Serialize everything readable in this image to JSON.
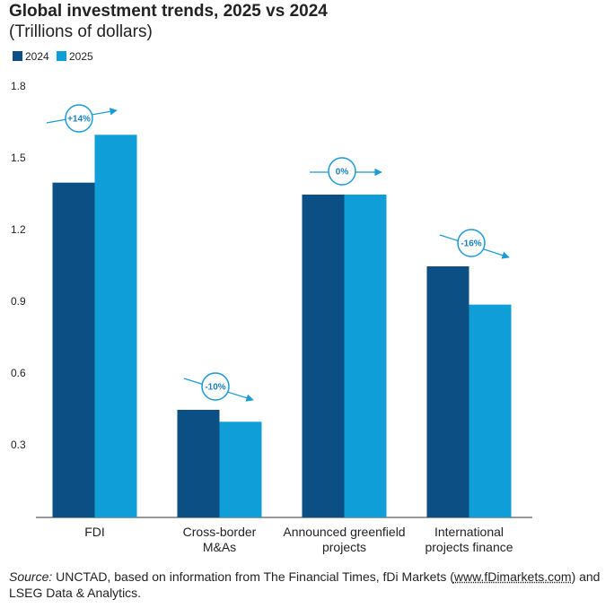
{
  "chart_data": {
    "type": "bar",
    "title": "Global investment trends, 2025 vs 2024",
    "subtitle": "(Trillions of dollars)",
    "categories": [
      "FDI",
      "Cross-border M&As",
      "Announced greenfield projects",
      "International projects finance"
    ],
    "series": [
      {
        "name": "2024",
        "color": "#0b4f85",
        "values": [
          1.4,
          0.45,
          1.35,
          1.05
        ]
      },
      {
        "name": "2025",
        "color": "#0f9ed8",
        "values": [
          1.6,
          0.4,
          1.35,
          0.89
        ]
      }
    ],
    "annotations": [
      "+14%",
      "-10%",
      "0%",
      "-16%"
    ],
    "ylim": [
      0,
      1.8
    ],
    "yticks": [
      0.3,
      0.6,
      0.9,
      1.2,
      1.5,
      1.8
    ],
    "source": {
      "label": "Source:",
      "text": "UNCTAD, based on information from The Financial Times, fDi Markets (",
      "link": "www.fDimarkets.com",
      "end": ") and LSEG Data & Analytics."
    }
  }
}
